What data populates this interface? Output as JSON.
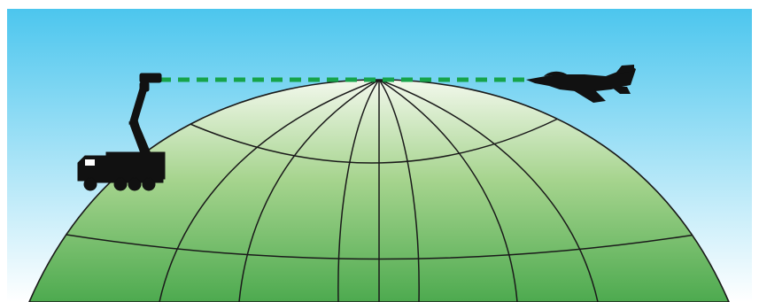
{
  "colors": {
    "sky_top": "#4cc6ee",
    "sky_bottom": "#ffffff",
    "globe_top": "#f2f8ec",
    "globe_bottom": "#4daa4f",
    "grid_line": "#1a1a1a",
    "line_of_sight": "#16a34a",
    "silhouette": "#111111"
  },
  "scene": {
    "objects": [
      "mast-truck",
      "fighter-jet",
      "line-of-sight",
      "earth-globe"
    ]
  }
}
